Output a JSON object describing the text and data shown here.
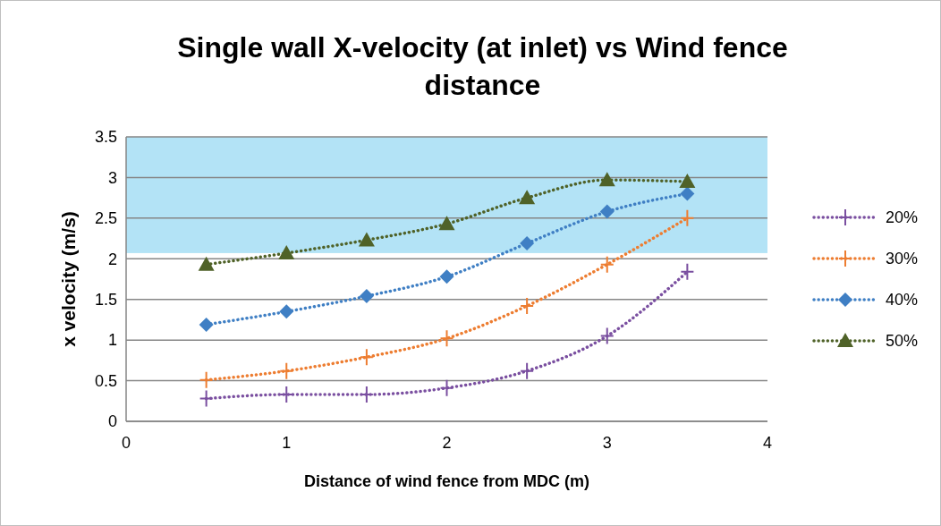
{
  "chart_data": {
    "type": "line",
    "title": "Single wall X-velocity (at inlet) vs Wind fence distance",
    "xlabel": "Distance of wind fence from MDC (m)",
    "ylabel": "x velocity (m/s)",
    "x": [
      0.5,
      1,
      1.5,
      2,
      2.5,
      3,
      3.5
    ],
    "xlim": [
      0,
      4
    ],
    "xticks": [
      0,
      1,
      2,
      3,
      4
    ],
    "ylim": [
      0,
      3.5
    ],
    "yticks": [
      0,
      0.5,
      1,
      1.5,
      2,
      2.5,
      3,
      3.5
    ],
    "grid": "y",
    "legend": "right",
    "line_style": "dotted",
    "bands": [
      {
        "axis": "y",
        "from": 2.07,
        "to": 3.5,
        "color": "#b3e3f6"
      }
    ],
    "series": [
      {
        "name": "20%",
        "color": "#7a4fa0",
        "marker": "cross",
        "values": [
          0.28,
          0.33,
          0.33,
          0.41,
          0.62,
          1.05,
          1.84
        ]
      },
      {
        "name": "30%",
        "color": "#ed7d31",
        "marker": "cross",
        "values": [
          0.51,
          0.62,
          0.79,
          1.02,
          1.42,
          1.93,
          2.5
        ]
      },
      {
        "name": "40%",
        "color": "#3f7fc4",
        "marker": "diamond",
        "values": [
          1.19,
          1.35,
          1.54,
          1.78,
          2.19,
          2.58,
          2.8
        ]
      },
      {
        "name": "50%",
        "color": "#4f6228",
        "marker": "triangle",
        "values": [
          1.93,
          2.07,
          2.23,
          2.43,
          2.75,
          2.97,
          2.95
        ]
      }
    ]
  }
}
